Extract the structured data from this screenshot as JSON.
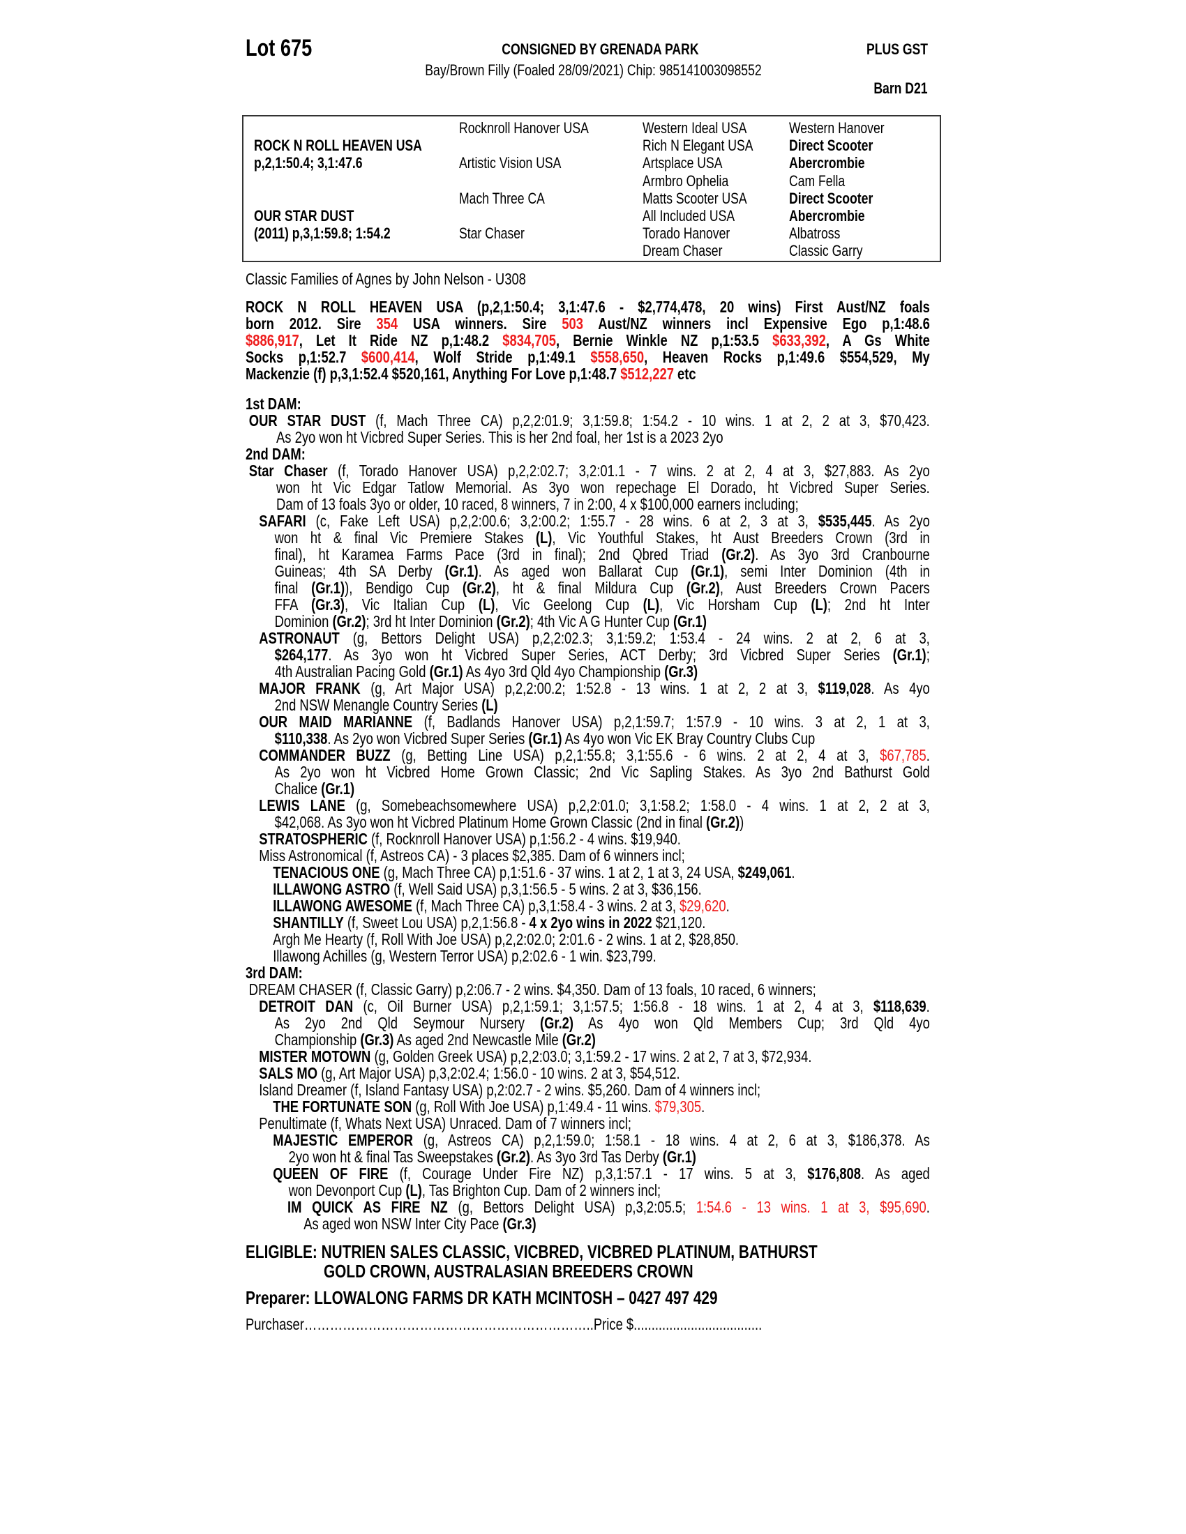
{
  "header": {
    "lot": "Lot 675",
    "consigned": "CONSIGNED BY GRENADA PARK",
    "plus_gst": "PLUS GST",
    "description": "Bay/Brown Filly (Foaled 28/09/2021) Chip: 985141003098552",
    "barn": "Barn D21"
  },
  "pedigree": {
    "col1": [
      {
        "row": 1,
        "text": "ROCK N ROLL HEAVEN USA",
        "bold": true
      },
      {
        "row": 2,
        "text": "p,2,1:50.4; 3,1:47.6",
        "bold": true
      },
      {
        "row": 5,
        "text": "OUR STAR DUST",
        "bold": true
      },
      {
        "row": 6,
        "text": "(2011) p,3,1:59.8; 1:54.2",
        "bold": true
      }
    ],
    "col2": [
      {
        "row": 0,
        "text": "Rocknroll Hanover USA"
      },
      {
        "row": 2,
        "text": "Artistic Vision USA"
      },
      {
        "row": 4,
        "text": "Mach Three CA"
      },
      {
        "row": 6,
        "text": "Star Chaser"
      }
    ],
    "col3": [
      {
        "row": 0,
        "text": "Western Ideal USA"
      },
      {
        "row": 1,
        "text": "Rich N Elegant USA"
      },
      {
        "row": 2,
        "text": "Artsplace USA"
      },
      {
        "row": 3,
        "text": "Armbro Ophelia"
      },
      {
        "row": 4,
        "text": "Matts Scooter USA"
      },
      {
        "row": 5,
        "text": "All Included USA"
      },
      {
        "row": 6,
        "text": "Torado Hanover"
      },
      {
        "row": 7,
        "text": "Dream Chaser"
      }
    ],
    "col4": [
      {
        "row": 0,
        "text": "Western Hanover"
      },
      {
        "row": 1,
        "text": "Direct Scooter",
        "bold": true
      },
      {
        "row": 2,
        "text": "Abercrombie",
        "bold": true
      },
      {
        "row": 3,
        "text": "Cam Fella"
      },
      {
        "row": 4,
        "text": "Direct Scooter",
        "bold": true
      },
      {
        "row": 5,
        "text": "Abercrombie",
        "bold": true
      },
      {
        "row": 6,
        "text": "Albatross"
      },
      {
        "row": 7,
        "text": "Classic Garry"
      }
    ]
  },
  "families_line": "Classic Families of Agnes by John Nelson - U308",
  "sire_paragraph": {
    "bold": true,
    "lines": [
      [
        "ROCK N ROLL HEAVEN USA (p,2,1:50.4; 3,1:47.6 - $2,774,478, 20 wins) First Aust/NZ foals"
      ],
      [
        "born 2012. Sire ",
        {
          "r": "354"
        },
        " USA winners. Sire ",
        {
          "r": "503"
        },
        " Aust/NZ winners incl Expensive Ego p,1:48.6"
      ],
      [
        {
          "r": "$886,917"
        },
        ", Let It Ride NZ p,1:48.2 ",
        {
          "r": "$834,705"
        },
        ", Bernie Winkle NZ p,1:53.5 ",
        {
          "r": "$633,392"
        },
        ", A Gs White"
      ],
      [
        "Socks p,1:52.7 ",
        {
          "r": "$600,414"
        },
        ", Wolf Stride p,1:49.1 ",
        {
          "r": "$558,650"
        },
        ", Heaven Rocks p,1:49.6 $554,529, My"
      ],
      [
        "Mackenzie (f) p,3,1:52.4 $520,161, Anything For Love p,1:48.7 ",
        {
          "r": "$512,227"
        },
        " etc"
      ]
    ]
  },
  "dams": [
    {
      "h": "1st DAM:"
    },
    {
      "lvl": 0,
      "lines": [
        [
          {
            "b": "OUR STAR DUST"
          },
          " (f, Mach Three CA) p,2,2:01.9; 3,1:59.8; 1:54.2 - 10 wins. 1 at 2, 2 at 3, $70,423."
        ],
        [
          "As 2yo won ht Vicbred Super Series. This is her 2nd foal, her 1st is a 2023 2yo"
        ]
      ]
    },
    {
      "h": "2nd DAM:"
    },
    {
      "lvl": 0,
      "lines": [
        [
          {
            "b": "Star Chaser"
          },
          " (f, Torado Hanover USA) p,2,2:02.7; 3,2:01.1 - 7 wins. 2 at 2, 4 at 3, $27,883. As 2yo"
        ],
        [
          "won ht Vic Edgar Tatlow Memorial. As 3yo won repechage El Dorado, ht Vicbred Super Series."
        ],
        [
          "Dam of 13 foals 3yo or older, 10 raced, 8 winners, 7 in 2:00, 4 x $100,000 earners including;"
        ]
      ]
    },
    {
      "lvl": 1,
      "lines": [
        [
          {
            "b": "SAFARI"
          },
          " (c, Fake Left USA) p,2,2:00.6; 3,2:00.2; 1:55.7 - 28 wins. 6 at 2, 3 at 3, ",
          {
            "b": "$535,445"
          },
          ". As 2yo"
        ],
        [
          "won ht & final Vic Premiere Stakes ",
          {
            "b": "(L)"
          },
          ", Vic Youthful Stakes, ht Aust Breeders Crown (3rd in"
        ],
        [
          "final), ht Karamea Farms Pace (3rd in final); 2nd Qbred Triad ",
          {
            "b": "(Gr.2)"
          },
          ". As 3yo 3rd Cranbourne"
        ],
        [
          "Guineas; 4th SA Derby ",
          {
            "b": "(Gr.1)"
          },
          ". As aged won Ballarat Cup ",
          {
            "b": "(Gr.1)"
          },
          ", semi Inter Dominion (4th in"
        ],
        [
          "final ",
          {
            "b": "(Gr.1)"
          },
          "), Bendigo Cup ",
          {
            "b": "(Gr.2)"
          },
          ", ht & final Mildura Cup ",
          {
            "b": "(Gr.2)"
          },
          ", Aust Breeders Crown Pacers"
        ],
        [
          "FFA ",
          {
            "b": "(Gr.3)"
          },
          ", Vic Italian Cup ",
          {
            "b": "(L)"
          },
          ", Vic Geelong Cup ",
          {
            "b": "(L)"
          },
          ", Vic Horsham Cup ",
          {
            "b": "(L)"
          },
          "; 2nd ht Inter"
        ],
        [
          "Dominion ",
          {
            "b": "(Gr.2)"
          },
          "; 3rd ht Inter Dominion ",
          {
            "b": "(Gr.2)"
          },
          "; 4th Vic A G Hunter Cup ",
          {
            "b": "(Gr.1)"
          }
        ]
      ]
    },
    {
      "lvl": 1,
      "lines": [
        [
          {
            "b": "ASTRONAUT"
          },
          " (g, Bettors Delight USA) p,2,2:02.3; 3,1:59.2; 1:53.4 - 24 wins. 2 at 2, 6 at 3,"
        ],
        [
          {
            "b": "$264,177"
          },
          ". As 3yo won ht Vicbred Super Series, ACT Derby; 3rd Vicbred Super Series ",
          {
            "b": "(Gr.1)"
          },
          ";"
        ],
        [
          "4th Australian Pacing Gold ",
          {
            "b": "(Gr.1)"
          },
          " As 4yo 3rd Qld 4yo Championship ",
          {
            "b": "(Gr.3)"
          }
        ]
      ]
    },
    {
      "lvl": 1,
      "lines": [
        [
          {
            "b": "MAJOR FRANK"
          },
          " (g, Art Major USA) p,2,2:00.2; 1:52.8 - 13 wins. 1 at 2, 2 at 3, ",
          {
            "b": "$119,028"
          },
          ". As 4yo"
        ],
        [
          "2nd NSW Menangle Country Series ",
          {
            "b": "(L)"
          }
        ]
      ]
    },
    {
      "lvl": 1,
      "lines": [
        [
          {
            "b": "OUR MAID MARIANNE"
          },
          " (f, Badlands Hanover USA) p,2,1:59.7; 1:57.9 - 10 wins. 3 at 2, 1 at 3,"
        ],
        [
          {
            "b": "$110,338"
          },
          ". As 2yo won Vicbred Super Series ",
          {
            "b": "(Gr.1)"
          },
          " As 4yo won Vic EK Bray Country Clubs Cup"
        ]
      ]
    },
    {
      "lvl": 1,
      "lines": [
        [
          {
            "b": "COMMANDER BUZZ"
          },
          " (g, Betting Line USA) p,2,1:55.8; 3,1:55.6 - 6 wins. 2 at 2, 4 at 3, ",
          {
            "r": "$67,785"
          },
          "."
        ],
        [
          "As 2yo won ht Vicbred Home Grown Classic; 2nd Vic Sapling Stakes. As 3yo 2nd Bathurst Gold"
        ],
        [
          "Chalice ",
          {
            "b": "(Gr.1)"
          }
        ]
      ]
    },
    {
      "lvl": 1,
      "lines": [
        [
          {
            "b": "LEWIS LANE"
          },
          " (g, Somebeachsomewhere USA) p,2,2:01.0; 3,1:58.2; 1:58.0 - 4 wins. 1 at 2, 2 at 3,"
        ],
        [
          "$42,068. As 3yo won ht Vicbred Platinum Home Grown Classic (2nd in final ",
          {
            "b": "(Gr.2)"
          },
          ")"
        ]
      ]
    },
    {
      "lvl": 1,
      "lines": [
        [
          {
            "b": "STRATOSPHERIC"
          },
          " (f, Rocknroll Hanover USA) p,1:56.2 - 4 wins. $19,940."
        ]
      ]
    },
    {
      "lvl": 1,
      "lines": [
        [
          "Miss Astronomical (f, Astreos CA) - 3 places $2,385. Dam of 6 winners incl;"
        ]
      ]
    },
    {
      "lvl": 2,
      "lines": [
        [
          {
            "b": "TENACIOUS ONE"
          },
          " (g, Mach Three CA) p,1:51.6 - 37 wins. 1 at 2, 1 at 3, 24 USA, ",
          {
            "b": "$249,061"
          },
          "."
        ]
      ]
    },
    {
      "lvl": 2,
      "lines": [
        [
          {
            "b": "ILLAWONG ASTRO"
          },
          " (f, Well Said USA) p,3,1:56.5 - 5 wins. 2 at 3, $36,156."
        ]
      ]
    },
    {
      "lvl": 2,
      "lines": [
        [
          {
            "b": "ILLAWONG AWESOME"
          },
          " (f, Mach Three CA) p,3,1:58.4 - 3 wins. 2 at 3, ",
          {
            "r": "$29,620"
          },
          "."
        ]
      ]
    },
    {
      "lvl": 2,
      "lines": [
        [
          {
            "b": "SHANTILLY"
          },
          " (f, Sweet Lou USA) p,2,1:56.8 - ",
          {
            "b": "4 x 2yo wins in 2022"
          },
          " $21,120."
        ]
      ]
    },
    {
      "lvl": 2,
      "lines": [
        [
          "Argh Me Hearty (f, Roll With Joe USA) p,2,2:02.0; 2:01.6 - 2 wins. 1 at 2, $28,850."
        ]
      ]
    },
    {
      "lvl": 2,
      "lines": [
        [
          "Illawong Achilles (g, Western Terror USA) p,2:02.6 - 1 win. $23,799."
        ]
      ]
    },
    {
      "h": "3rd DAM:"
    },
    {
      "lvl": 0,
      "lines": [
        [
          "DREAM CHASER (f, Classic Garry) p,2:06.7 - 2 wins. $4,350. Dam of 13 foals, 10 raced, 6 winners;"
        ]
      ]
    },
    {
      "lvl": 1,
      "lines": [
        [
          {
            "b": "DETROIT DAN"
          },
          " (c, Oil Burner USA) p,2,1:59.1; 3,1:57.5; 1:56.8 - 18 wins. 1 at 2, 4 at 3, ",
          {
            "b": "$118,639"
          },
          "."
        ],
        [
          "As 2yo 2nd Qld Seymour Nursery ",
          {
            "b": "(Gr.2)"
          },
          " As 4yo won Qld Members Cup; 3rd Qld 4yo"
        ],
        [
          "Championship ",
          {
            "b": "(Gr.3)"
          },
          " As aged 2nd Newcastle Mile ",
          {
            "b": "(Gr.2)"
          }
        ]
      ]
    },
    {
      "lvl": 1,
      "lines": [
        [
          {
            "b": "MISTER MOTOWN"
          },
          " (g, Golden Greek USA) p,2,2:03.0; 3,1:59.2 - 17 wins. 2 at 2, 7 at 3, $72,934."
        ]
      ]
    },
    {
      "lvl": 1,
      "lines": [
        [
          {
            "b": "SALS MO"
          },
          " (g, Art Major USA) p,3,2:02.4; 1:56.0 - 10 wins. 2 at 3, $54,512."
        ]
      ]
    },
    {
      "lvl": 1,
      "lines": [
        [
          "Island Dreamer (f, Island Fantasy USA) p,2:02.7 - 2 wins. $5,260. Dam of 4 winners incl;"
        ]
      ]
    },
    {
      "lvl": 2,
      "lines": [
        [
          {
            "b": "THE FORTUNATE SON"
          },
          " (g, Roll With Joe USA) p,1:49.4 - 11 wins. ",
          {
            "r": "$79,305"
          },
          "."
        ]
      ]
    },
    {
      "lvl": 1,
      "lines": [
        [
          "Penultimate (f, Whats Next USA) Unraced. Dam of 7 winners incl;"
        ]
      ]
    },
    {
      "lvl": 2,
      "lines": [
        [
          {
            "b": "MAJESTIC EMPEROR"
          },
          " (g, Astreos CA) p,2,1:59.0; 1:58.1 - 18 wins. 4 at 2, 6 at 3, $186,378. As"
        ],
        [
          "2yo won ht & final Tas Sweepstakes ",
          {
            "b": "(Gr.2)"
          },
          ". As 3yo 3rd Tas Derby ",
          {
            "b": "(Gr.1)"
          }
        ]
      ]
    },
    {
      "lvl": 2,
      "lines": [
        [
          {
            "b": "QUEEN OF FIRE"
          },
          " (f, Courage Under Fire NZ) p,3,1:57.1 - 17 wins. 5 at 3, ",
          {
            "b": "$176,808"
          },
          ". As aged"
        ],
        [
          "won Devonport Cup ",
          {
            "b": "(L)"
          },
          ", Tas Brighton Cup. Dam of 2 winners incl;"
        ]
      ]
    },
    {
      "lvl": 3,
      "lines": [
        [
          {
            "b": "IM QUICK AS FIRE NZ"
          },
          " (g, Bettors Delight USA) p,3,2:05.5; ",
          {
            "r": "1:54.6 - 13 wins. 1 at 3, $95,690"
          },
          "."
        ],
        [
          "As aged won NSW Inter City Pace ",
          {
            "b": "(Gr.3)"
          }
        ]
      ]
    }
  ],
  "eligible": {
    "line1": "ELIGIBLE: NUTRIEN SALES CLASSIC, VICBRED, VICBRED PLATINUM, BATHURST",
    "line2": "GOLD CROWN, AUSTRALASIAN BREEDERS CROWN"
  },
  "preparer": "Preparer: LLOWALONG FARMS DR KATH MCINTOSH – 0427 497 429",
  "purchaser_line": "Purchaser…………………………………………………………..Price $....................................",
  "colors": {
    "text": "#000000",
    "highlight_red": "#ee1c1c",
    "border": "#333333"
  }
}
